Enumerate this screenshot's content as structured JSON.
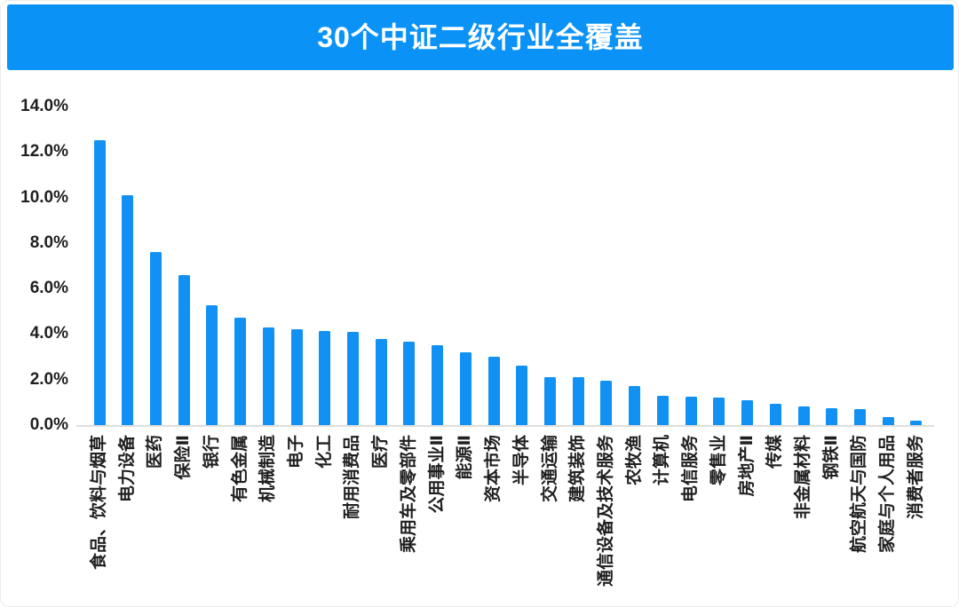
{
  "title": "30个中证二级行业全覆盖",
  "colors": {
    "banner_blue": "#0a92f7",
    "bar_blue": "#1191f3",
    "axis_text": "#1f1f1f",
    "baseline_gray": "#dedede"
  },
  "chart_data": {
    "type": "bar",
    "title": "30个中证二级行业全覆盖",
    "xlabel": "",
    "ylabel": "",
    "unit": "%",
    "ylim": [
      0,
      14
    ],
    "ytick_step": 2,
    "ytick_labels": [
      "0.0%",
      "2.0%",
      "4.0%",
      "6.0%",
      "8.0%",
      "10.0%",
      "12.0%",
      "14.0%"
    ],
    "grid": false,
    "legend": false,
    "bar_orientation": "vertical",
    "xlabel_rotation": -90,
    "categories": [
      "食品、饮料与烟草",
      "电力设备",
      "医药",
      "保险Ⅱ",
      "银行",
      "有色金属",
      "机械制造",
      "电子",
      "化工",
      "耐用消费品",
      "医疗",
      "乘用车及零部件",
      "公用事业Ⅱ",
      "能源Ⅱ",
      "资本市场",
      "半导体",
      "交通运输",
      "建筑装饰",
      "通信设备及技术服务",
      "农牧渔",
      "计算机",
      "电信服务",
      "零售业",
      "房地产Ⅱ",
      "传媒",
      "非金属材料",
      "钢铁Ⅱ",
      "航空航天与国防",
      "家庭与个人用品",
      "消费者服务"
    ],
    "values": [
      12.5,
      10.1,
      7.6,
      6.6,
      5.25,
      4.7,
      4.3,
      4.2,
      4.15,
      4.1,
      3.8,
      3.65,
      3.5,
      3.2,
      3.0,
      2.6,
      2.1,
      2.1,
      1.95,
      1.7,
      1.3,
      1.25,
      1.2,
      1.1,
      0.95,
      0.8,
      0.75,
      0.7,
      0.35,
      0.2
    ]
  }
}
